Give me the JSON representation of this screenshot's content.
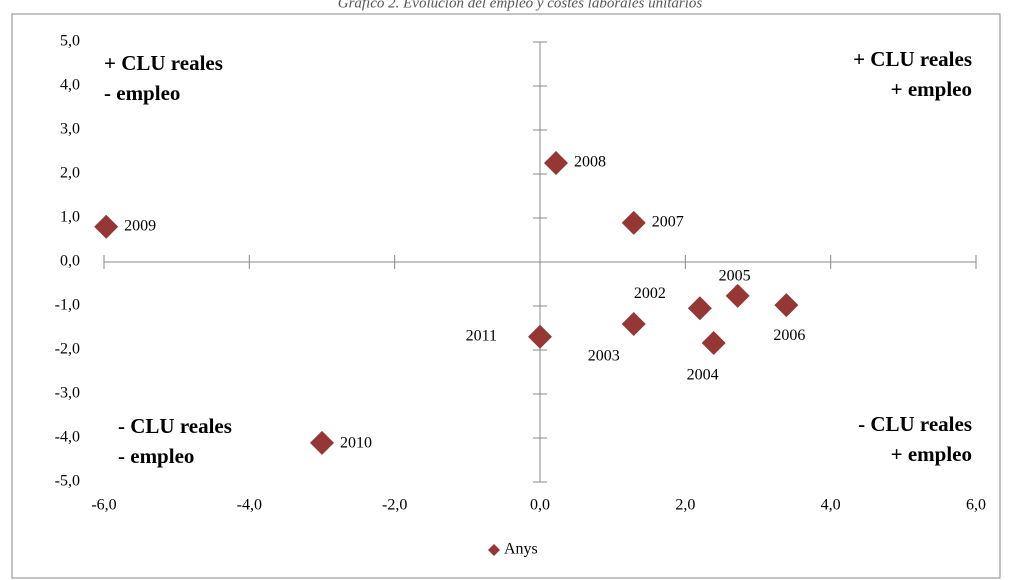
{
  "chart_data": {
    "type": "scatter",
    "title": "Gráfico 2. Evolución del empleo y costes laborales unitarios",
    "xlim": [
      -6,
      6
    ],
    "ylim": [
      -5,
      5
    ],
    "xticks": [
      {
        "value": -6,
        "label": "-6,0"
      },
      {
        "value": -4,
        "label": "-4,0"
      },
      {
        "value": -2,
        "label": "-2,0"
      },
      {
        "value": 0,
        "label": "0,0"
      },
      {
        "value": 2,
        "label": "2,0"
      },
      {
        "value": 4,
        "label": "4,0"
      },
      {
        "value": 6,
        "label": "6,0"
      }
    ],
    "yticks": [
      {
        "value": -5,
        "label": "-5,0"
      },
      {
        "value": -4,
        "label": "-4,0"
      },
      {
        "value": -3,
        "label": "-3,0"
      },
      {
        "value": -2,
        "label": "-2,0"
      },
      {
        "value": -1,
        "label": "-1,0"
      },
      {
        "value": 0,
        "label": "0,0"
      },
      {
        "value": 1,
        "label": "1,0"
      },
      {
        "value": 2,
        "label": "2,0"
      },
      {
        "value": 3,
        "label": "3,0"
      },
      {
        "value": 4,
        "label": "4,0"
      },
      {
        "value": 5,
        "label": "5,0"
      }
    ],
    "series": [
      {
        "name": "Anys",
        "color": "#953735",
        "x": [
          -5.97,
          0.22,
          1.29,
          2.72,
          3.39,
          2.2,
          1.29,
          2.39,
          0.0,
          -3.0
        ],
        "values": [
          0.8,
          2.25,
          0.89,
          -0.77,
          -0.98,
          -1.05,
          -1.41,
          -1.84,
          -1.7,
          -4.11
        ],
        "point_labels": [
          "2009",
          "2008",
          "2007",
          "2005",
          "2006",
          "2002",
          "2003",
          "2004",
          "2011",
          "2010"
        ]
      }
    ],
    "annotations": [
      [
        "+ CLU reales",
        "- empleo"
      ],
      [
        "+ CLU reales",
        "+ empleo"
      ],
      [
        "- CLU reales",
        "- empleo"
      ],
      [
        "- CLU reales",
        "+ empleo"
      ]
    ],
    "legend": "bottom"
  }
}
